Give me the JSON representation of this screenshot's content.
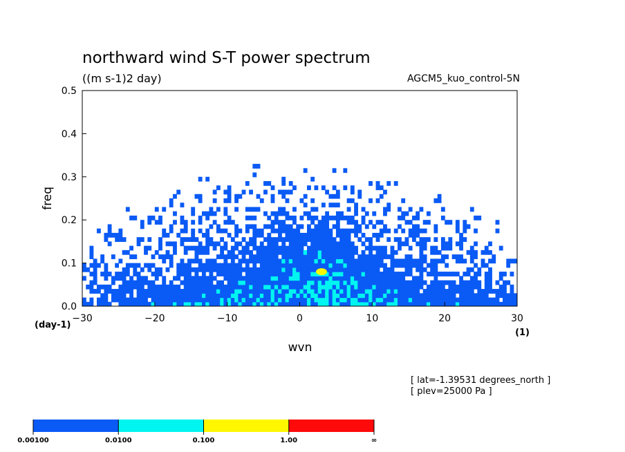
{
  "chart_data": {
    "type": "heatmap",
    "title": "northward wind S-T power spectrum",
    "units": "((m s-1)2 day)",
    "dataset": "AGCM5_kuo_control-5N",
    "xlabel": "wvn",
    "ylabel": "freq",
    "x_unit": "(1)",
    "y_unit": "(day-1)",
    "xlim": [
      -30,
      30
    ],
    "ylim": [
      0,
      0.5
    ],
    "xticks": [
      "−30",
      "−20",
      "−10",
      "0",
      "10",
      "20",
      "30"
    ],
    "yticks": [
      "0.0",
      "0.1",
      "0.2",
      "0.3",
      "0.4",
      "0.5"
    ],
    "levels": [
      0.001,
      0.01,
      0.1,
      1.0
    ],
    "colorbar": {
      "labels": [
        "0.00100",
        "0.0100",
        "0.100",
        "1.00",
        "∞"
      ],
      "colors": [
        "#0a5af5",
        "#00f5f0",
        "#fff700",
        "#ff0a0a"
      ]
    },
    "annotations": [
      "[ lat=-1.39531 degrees_north ]",
      "[ plev=25000 Pa ]"
    ],
    "spectral_peak": {
      "wvn": 3,
      "freq": 0.08,
      "class": "0.100-1.00"
    },
    "grid": false
  }
}
